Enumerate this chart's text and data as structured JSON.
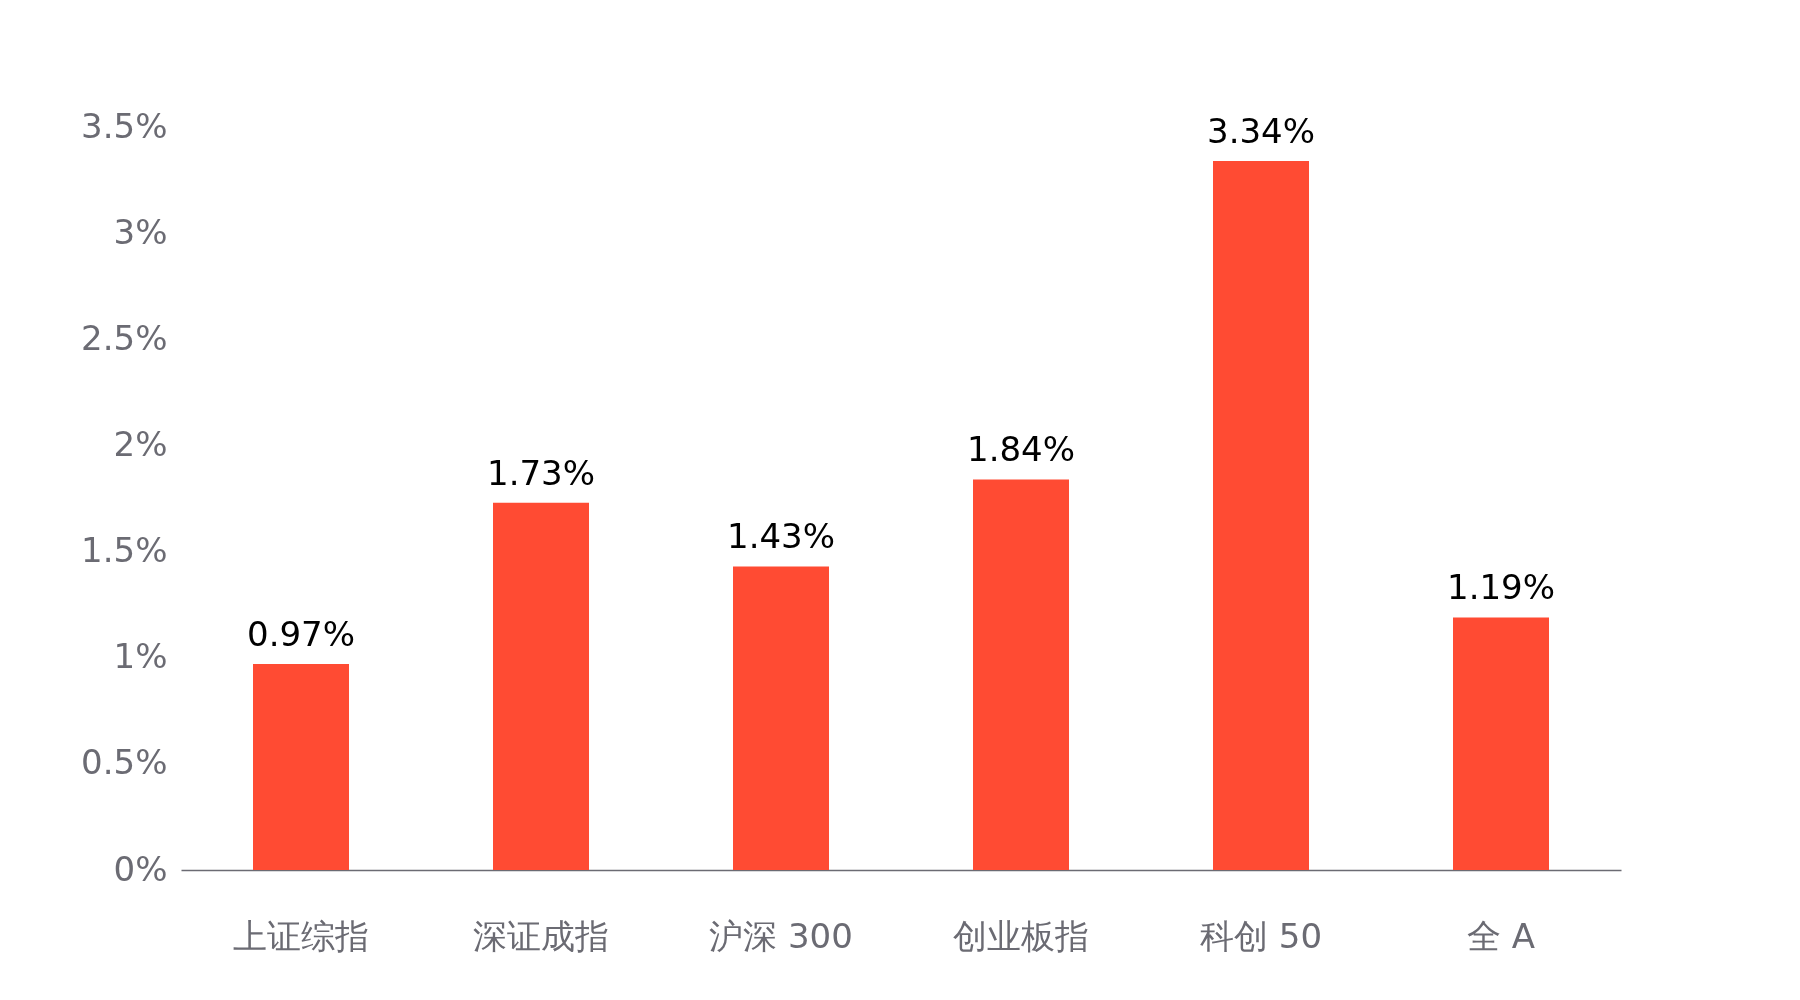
{
  "chart_data": {
    "type": "bar",
    "categories": [
      "上证综指",
      "深证成指",
      "沪深 300",
      "创业板指",
      "科创 50",
      "全 A"
    ],
    "values": [
      0.97,
      1.73,
      1.43,
      1.84,
      3.34,
      1.19
    ],
    "value_labels": [
      "0.97%",
      "1.73%",
      "1.43%",
      "1.84%",
      "3.34%",
      "1.19%"
    ],
    "color": "#ff4b33",
    "ylim": [
      0,
      3.5
    ],
    "yticks": [
      {
        "value": 0,
        "label": "0%"
      },
      {
        "value": 0.5,
        "label": "0.5%"
      },
      {
        "value": 1,
        "label": "1%"
      },
      {
        "value": 1.5,
        "label": "1.5%"
      },
      {
        "value": 2,
        "label": "2%"
      },
      {
        "value": 2.5,
        "label": "2.5%"
      },
      {
        "value": 3,
        "label": "3%"
      },
      {
        "value": 3.5,
        "label": "3.5%"
      }
    ],
    "grid": false
  }
}
